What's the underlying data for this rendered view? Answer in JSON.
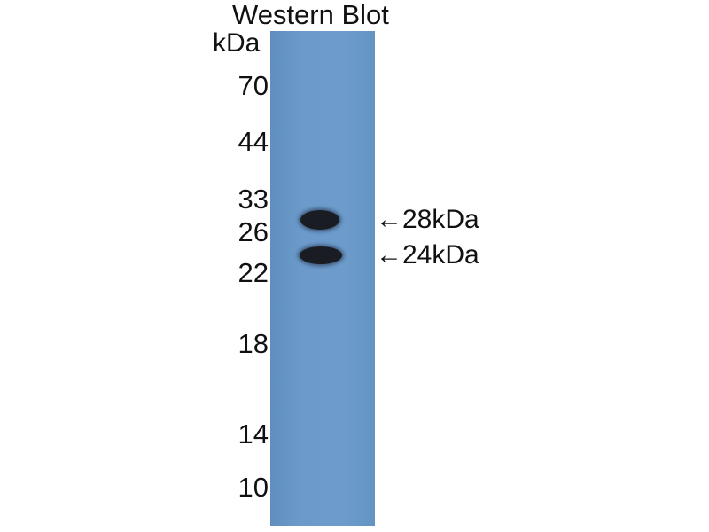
{
  "title": "Western Blot",
  "unit": "kDa",
  "lane_color": "#6b9acb",
  "band_color": "#1a1c24",
  "markers": [
    "70",
    "44",
    "33",
    "26",
    "22",
    "18",
    "14",
    "10"
  ],
  "bands": [
    {
      "label": "28kDa",
      "arrow": "←"
    },
    {
      "label": "24kDa",
      "arrow": "←"
    }
  ]
}
